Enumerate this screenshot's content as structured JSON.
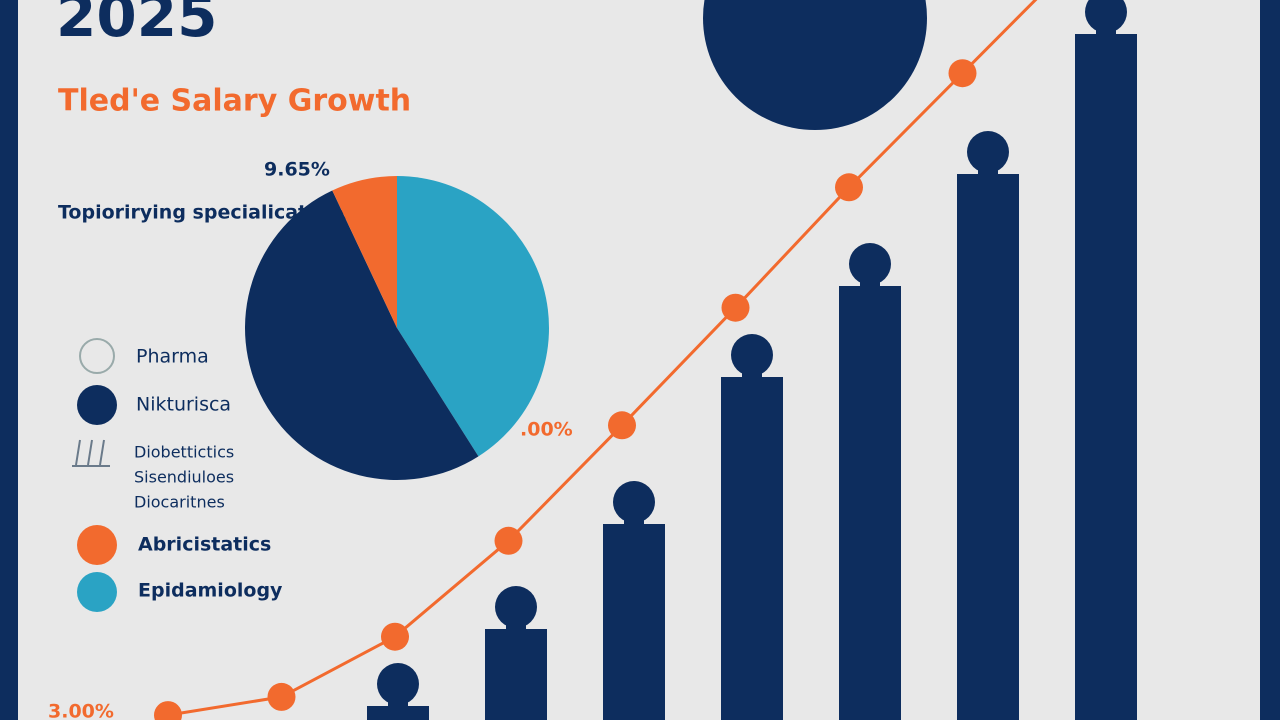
{
  "title": "2025",
  "subtitle": "Tled'e Salary Growth",
  "chart_data": [
    {
      "type": "pie",
      "title": "Topiorirying specialications",
      "annotation": "9.65%",
      "categories": [
        "Epidamiology",
        "Nikturisca",
        "Abricistatics"
      ],
      "values": [
        41,
        52,
        7
      ],
      "colors": [
        "#2aa3c4",
        "#0d2d5e",
        "#f26a2e"
      ]
    },
    {
      "type": "bar",
      "values": [
        2,
        13,
        28,
        49,
        62,
        78,
        98
      ],
      "color": "#0d2d5e",
      "ylim": [
        0,
        100
      ]
    },
    {
      "type": "line",
      "values": [
        0.7,
        3.3,
        11.9,
        25.6,
        42.1,
        58.9,
        76.1,
        92.4
      ],
      "color": "#f26a2e",
      "ylim": [
        0,
        100
      ],
      "annotations": [
        "3.00%",
        ".00%"
      ]
    }
  ],
  "legend": [
    {
      "label": "Pharma"
    },
    {
      "label": "Nikturisca"
    },
    {
      "label": [
        "Diobettictics",
        "Sisendiuloes",
        "Diocaritnes"
      ]
    },
    {
      "label": "Abricistatics"
    },
    {
      "label": "Epidamiology"
    }
  ]
}
